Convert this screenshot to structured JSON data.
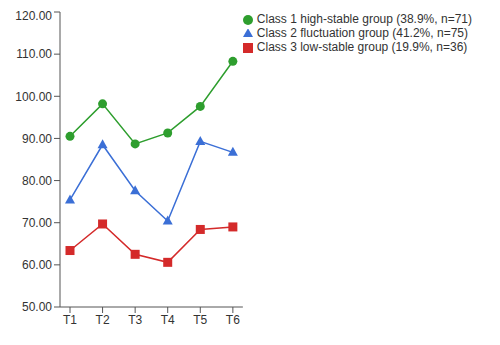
{
  "chart_data": {
    "type": "line",
    "categories": [
      "T1",
      "T2",
      "T3",
      "T4",
      "T5",
      "T6"
    ],
    "series": [
      {
        "name": "Class 1 high-stable group (38.9%, n=71)",
        "color": "#2e9e2e",
        "marker": "circle",
        "values": [
          90.5,
          98.2,
          88.7,
          91.3,
          97.6,
          108.3
        ]
      },
      {
        "name": "Class 2 fluctuation group (41.2%, n=75)",
        "color": "#3b6fd6",
        "marker": "triangle",
        "values": [
          75.4,
          88.5,
          77.6,
          70.4,
          89.3,
          86.7
        ]
      },
      {
        "name": "Class 3 low-stable group (19.9%, n=36)",
        "color": "#d42a2a",
        "marker": "square",
        "values": [
          63.4,
          69.7,
          62.5,
          60.6,
          68.4,
          69.0
        ]
      }
    ],
    "ylim": [
      50,
      120
    ],
    "yticks": [
      {
        "value": 50,
        "label": "50.00"
      },
      {
        "value": 60,
        "label": "60.00"
      },
      {
        "value": 70,
        "label": "70.00"
      },
      {
        "value": 80,
        "label": "80.00"
      },
      {
        "value": 90,
        "label": "90.00"
      },
      {
        "value": 100,
        "label": "100.00"
      },
      {
        "value": 110,
        "label": "110.00"
      },
      {
        "value": 120,
        "label": "120.00"
      }
    ],
    "grid": false,
    "legend": "upper-right"
  }
}
